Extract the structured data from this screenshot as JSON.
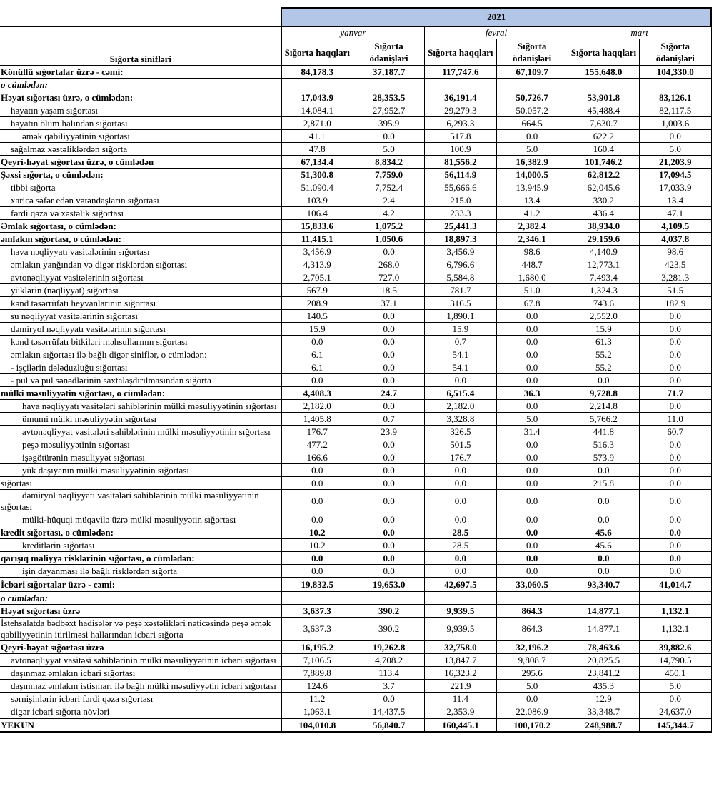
{
  "header": {
    "year": "2021",
    "label_column": "Sığorta sinifləri",
    "months": [
      "yanvar",
      "fevral",
      "mart"
    ],
    "subcolumns": [
      "Sığorta haqqları",
      "Sığorta ödənişləri"
    ]
  },
  "rows": [
    {
      "label": "Könüllü sığortalar üzrə - cəmi:",
      "kind": "total",
      "level": 0,
      "values": [
        "84,178.3",
        "37,187.7",
        "117,747.6",
        "67,109.7",
        "155,648.0",
        "104,330.0"
      ]
    },
    {
      "label": "o cümlədən:",
      "kind": "note",
      "level": 0,
      "values": [
        "",
        "",
        "",
        "",
        "",
        ""
      ]
    },
    {
      "label": "Həyat sığortası üzrə, o cümlədən:",
      "kind": "bold",
      "level": 0,
      "values": [
        "17,043.9",
        "28,353.5",
        "36,191.4",
        "50,726.7",
        "53,901.8",
        "83,126.1"
      ]
    },
    {
      "label": "həyatın yaşam sığortası",
      "kind": "item",
      "level": 1,
      "values": [
        "14,084.1",
        "27,952.7",
        "29,279.3",
        "50,057.2",
        "45,488.4",
        "82,117.5"
      ]
    },
    {
      "label": "həyatın ölüm halından sığortası",
      "kind": "item",
      "level": 1,
      "values": [
        "2,871.0",
        "395.9",
        "6,293.3",
        "664.5",
        "7,630.7",
        "1,003.6"
      ]
    },
    {
      "label": "əmək qabiliyyətinin sığortası",
      "kind": "item",
      "level": 2,
      "values": [
        "41.1",
        "0.0",
        "517.8",
        "0.0",
        "622.2",
        "0.0"
      ]
    },
    {
      "label": "sağalmaz xəstəliklərdən sığorta",
      "kind": "item",
      "level": 1,
      "values": [
        "47.8",
        "5.0",
        "100.9",
        "5.0",
        "160.4",
        "5.0"
      ]
    },
    {
      "label": "Qeyri-həyat sığortası üzrə, o cümlədən",
      "kind": "bold",
      "level": 0,
      "values": [
        "67,134.4",
        "8,834.2",
        "81,556.2",
        "16,382.9",
        "101,746.2",
        "21,203.9"
      ]
    },
    {
      "label": "Şəxsi sığorta,  o cümlədən:",
      "kind": "bold",
      "level": 0,
      "values": [
        "51,300.8",
        "7,759.0",
        "56,114.9",
        "14,000.5",
        "62,812.2",
        "17,094.5"
      ]
    },
    {
      "label": "tibbi sığorta",
      "kind": "item",
      "level": 1,
      "values": [
        "51,090.4",
        "7,752.4",
        "55,666.6",
        "13,945.9",
        "62,045.6",
        "17,033.9"
      ]
    },
    {
      "label": "xaricə səfər edən vətəndaşların sığortası",
      "kind": "item",
      "level": 1,
      "values": [
        "103.9",
        "2.4",
        "215.0",
        "13.4",
        "330.2",
        "13.4"
      ]
    },
    {
      "label": "fərdi qəza və xəstəlik sığortası",
      "kind": "item",
      "level": 1,
      "values": [
        "106.4",
        "4.2",
        "233.3",
        "41.2",
        "436.4",
        "47.1"
      ]
    },
    {
      "label": "Əmlak sığortası, o cümlədən:",
      "kind": "bold",
      "level": 0,
      "values": [
        "15,833.6",
        "1,075.2",
        "25,441.3",
        "2,382.4",
        "38,934.0",
        "4,109.5"
      ]
    },
    {
      "label": "əmlakın sığortası,  o cümlədən:",
      "kind": "bold",
      "level": 0,
      "values": [
        "11,415.1",
        "1,050.6",
        "18,897.3",
        "2,346.1",
        "29,159.6",
        "4,037.8"
      ]
    },
    {
      "label": "hava nəqliyyatı vasitələrinin sığortası",
      "kind": "item",
      "level": 1,
      "values": [
        "3,456.9",
        "0.0",
        "3,456.9",
        "98.6",
        "4,140.9",
        "98.6"
      ]
    },
    {
      "label": "əmlakın yanğından və digər risklərdən sığortası",
      "kind": "item",
      "level": 1,
      "values": [
        "4,313.9",
        "268.0",
        "6,796.6",
        "448.7",
        "12,773.1",
        "423.5"
      ]
    },
    {
      "label": "avtonəqliyyat vasitələrinin sığortası",
      "kind": "item",
      "level": 1,
      "values": [
        "2,705.1",
        "727.0",
        "5,584.8",
        "1,680.0",
        "7,493.4",
        "3,281.3"
      ]
    },
    {
      "label": "yüklərin (nəqliyyat) sığortası",
      "kind": "item",
      "level": 1,
      "values": [
        "567.9",
        "18.5",
        "781.7",
        "51.0",
        "1,324.3",
        "51.5"
      ]
    },
    {
      "label": "kənd təsərrüfatı heyvanlarının sığortası",
      "kind": "item",
      "level": 1,
      "values": [
        "208.9",
        "37.1",
        "316.5",
        "67.8",
        "743.6",
        "182.9"
      ]
    },
    {
      "label": "su nəqliyyat vasitələrinin sığortası",
      "kind": "item",
      "level": 1,
      "values": [
        "140.5",
        "0.0",
        "1,890.1",
        "0.0",
        "2,552.0",
        "0.0"
      ]
    },
    {
      "label": "dəmiryol nəqliyyatı vasitələrinin sığortası",
      "kind": "item",
      "level": 1,
      "values": [
        "15.9",
        "0.0",
        "15.9",
        "0.0",
        "15.9",
        "0.0"
      ]
    },
    {
      "label": "kənd təsərrüfatı bitkiləri məhsullarının sığortası",
      "kind": "item",
      "level": 1,
      "values": [
        "0.0",
        "0.0",
        "0.7",
        "0.0",
        "61.3",
        "0.0"
      ]
    },
    {
      "label": "əmlakın sığortası ilə bağlı digər siniflər,  o cümlədən:",
      "kind": "item",
      "level": 1,
      "values": [
        "6.1",
        "0.0",
        "54.1",
        "0.0",
        "55.2",
        "0.0"
      ]
    },
    {
      "label": "- işçilərin dələduzluğu sığortası",
      "kind": "item",
      "level": 1,
      "values": [
        "6.1",
        "0.0",
        "54.1",
        "0.0",
        "55.2",
        "0.0"
      ]
    },
    {
      "label": "- pul və pul sənədlərinin saxtalaşdırılmasından sığorta",
      "kind": "item",
      "level": 1,
      "values": [
        "0.0",
        "0.0",
        "0.0",
        "0.0",
        "0.0",
        "0.0"
      ]
    },
    {
      "label": "mülki məsuliyyətin sığortası, o cümlədən:",
      "kind": "bold",
      "level": 0,
      "values": [
        "4,408.3",
        "24.7",
        "6,515.4",
        "36.3",
        "9,728.8",
        "71.7"
      ]
    },
    {
      "label": "hava nəqliyyatı vasitələri sahiblərinin mülki məsuliyyətinin sığortası",
      "kind": "item",
      "level": 2,
      "values": [
        "2,182.0",
        "0.0",
        "2,182.0",
        "0.0",
        "2,214.8",
        "0.0"
      ]
    },
    {
      "label": "ümumi mülki məsuliyyətin sığortası",
      "kind": "item",
      "level": 2,
      "values": [
        "1,405.8",
        "0.7",
        "3,328.8",
        "5.0",
        "5,766.2",
        "11.0"
      ]
    },
    {
      "label": "avtonəqliyyat vasitələri sahiblərinin mülki məsuliyyətinin sığortası",
      "kind": "item",
      "level": 2,
      "values": [
        "176.7",
        "23.9",
        "326.5",
        "31.4",
        "441.8",
        "60.7"
      ]
    },
    {
      "label": "peşə məsuliyyətinin sığortası",
      "kind": "item",
      "level": 2,
      "values": [
        "477.2",
        "0.0",
        "501.5",
        "0.0",
        "516.3",
        "0.0"
      ]
    },
    {
      "label": "işəgötürənin məsuliyyət sığortası",
      "kind": "item",
      "level": 2,
      "values": [
        "166.6",
        "0.0",
        "176.7",
        "0.0",
        "573.9",
        "0.0"
      ]
    },
    {
      "label": "yük daşıyanın mülki məsuliyyətinin sığortası",
      "kind": "item",
      "level": 2,
      "values": [
        "0.0",
        "0.0",
        "0.0",
        "0.0",
        "0.0",
        "0.0"
      ]
    },
    {
      "label": "sığortası",
      "kind": "item",
      "level": 0,
      "values": [
        "0.0",
        "0.0",
        "0.0",
        "0.0",
        "215.8",
        "0.0"
      ]
    },
    {
      "label": "dəmiryol nəqliyyatı vasitələri sahiblərinin mülki məsuliyyətinin sığortası",
      "kind": "item",
      "level": 2,
      "values": [
        "0.0",
        "0.0",
        "0.0",
        "0.0",
        "0.0",
        "0.0"
      ]
    },
    {
      "label": "mülki-hüquqi müqavilə üzrə mülki məsuliyyətin sığortası",
      "kind": "item",
      "level": 2,
      "values": [
        "0.0",
        "0.0",
        "0.0",
        "0.0",
        "0.0",
        "0.0"
      ]
    },
    {
      "label": "kredit sığortası, o cümlədən:",
      "kind": "bold",
      "level": 0,
      "values": [
        "10.2",
        "0.0",
        "28.5",
        "0.0",
        "45.6",
        "0.0"
      ]
    },
    {
      "label": "kreditlərin sığortası",
      "kind": "item",
      "level": 2,
      "values": [
        "10.2",
        "0.0",
        "28.5",
        "0.0",
        "45.6",
        "0.0"
      ]
    },
    {
      "label": "qarışıq maliyyə risklərinin sığortası,  o cümlədən:",
      "kind": "bold",
      "level": 0,
      "values": [
        "0.0",
        "0.0",
        "0.0",
        "0.0",
        "0.0",
        "0.0"
      ]
    },
    {
      "label": "işin dayanması ilə bağlı risklərdən sığorta",
      "kind": "item",
      "level": 2,
      "values": [
        "0.0",
        "0.0",
        "0.0",
        "0.0",
        "0.0",
        "0.0"
      ]
    },
    {
      "label": "İcbari sığortalar üzrə - cəmi:",
      "kind": "total",
      "level": 0,
      "values": [
        "19,832.5",
        "19,653.0",
        "42,697.5",
        "33,060.5",
        "93,340.7",
        "41,014.7"
      ]
    },
    {
      "label": "o cümlədən:",
      "kind": "note",
      "level": 0,
      "values": [
        "",
        "",
        "",
        "",
        "",
        ""
      ]
    },
    {
      "label": "Həyat sığortası üzrə",
      "kind": "bold",
      "level": 0,
      "values": [
        "3,637.3",
        "390.2",
        "9,939.5",
        "864.3",
        "14,877.1",
        "1,132.1"
      ]
    },
    {
      "label": "İstehsalatda bədbəxt hadisələr və peşə xəstəlikləri nəticəsində peşə əmək qabiliyyətinin itirilməsi hallarından icbari sığorta",
      "kind": "item",
      "level": 0,
      "values": [
        "3,637.3",
        "390.2",
        "9,939.5",
        "864.3",
        "14,877.1",
        "1,132.1"
      ]
    },
    {
      "label": "Qeyri-həyat sığortası üzrə",
      "kind": "bold",
      "level": 0,
      "values": [
        "16,195.2",
        "19,262.8",
        "32,758.0",
        "32,196.2",
        "78,463.6",
        "39,882.6"
      ]
    },
    {
      "label": "avtonəqliyyat vasitəsi sahiblərinin mülki məsuliyyətinin icbari sığortası",
      "kind": "item",
      "level": 1,
      "values": [
        "7,106.5",
        "4,708.2",
        "13,847.7",
        "9,808.7",
        "20,825.5",
        "14,790.5"
      ]
    },
    {
      "label": "daşınmaz əmlakın icbari sığortası",
      "kind": "item",
      "level": 1,
      "values": [
        "7,889.8",
        "113.4",
        "16,323.2",
        "295.6",
        "23,841.2",
        "450.1"
      ]
    },
    {
      "label": "daşınmaz əmlakın istismarı ilə bağlı mülki məsuliyyətin icbari sığortası",
      "kind": "item",
      "level": 1,
      "values": [
        "124.6",
        "3.7",
        "221.9",
        "5.0",
        "435.3",
        "5.0"
      ]
    },
    {
      "label": "sərnişinlərin icbari fərdi qəza sığortası",
      "kind": "item",
      "level": 1,
      "values": [
        "11.2",
        "0.0",
        "11.4",
        "0.0",
        "12.9",
        "0.0"
      ]
    },
    {
      "label": "digər icbari sığorta növləri",
      "kind": "item",
      "level": 1,
      "values": [
        "1,063.1",
        "14,437.5",
        "2,353.9",
        "22,086.9",
        "33,348.7",
        "24,637.0"
      ]
    },
    {
      "label": "YEKUN",
      "kind": "total",
      "level": 0,
      "values": [
        "104,010.8",
        "56,840.7",
        "160,445.1",
        "100,170.2",
        "248,988.7",
        "145,344.7"
      ]
    }
  ]
}
